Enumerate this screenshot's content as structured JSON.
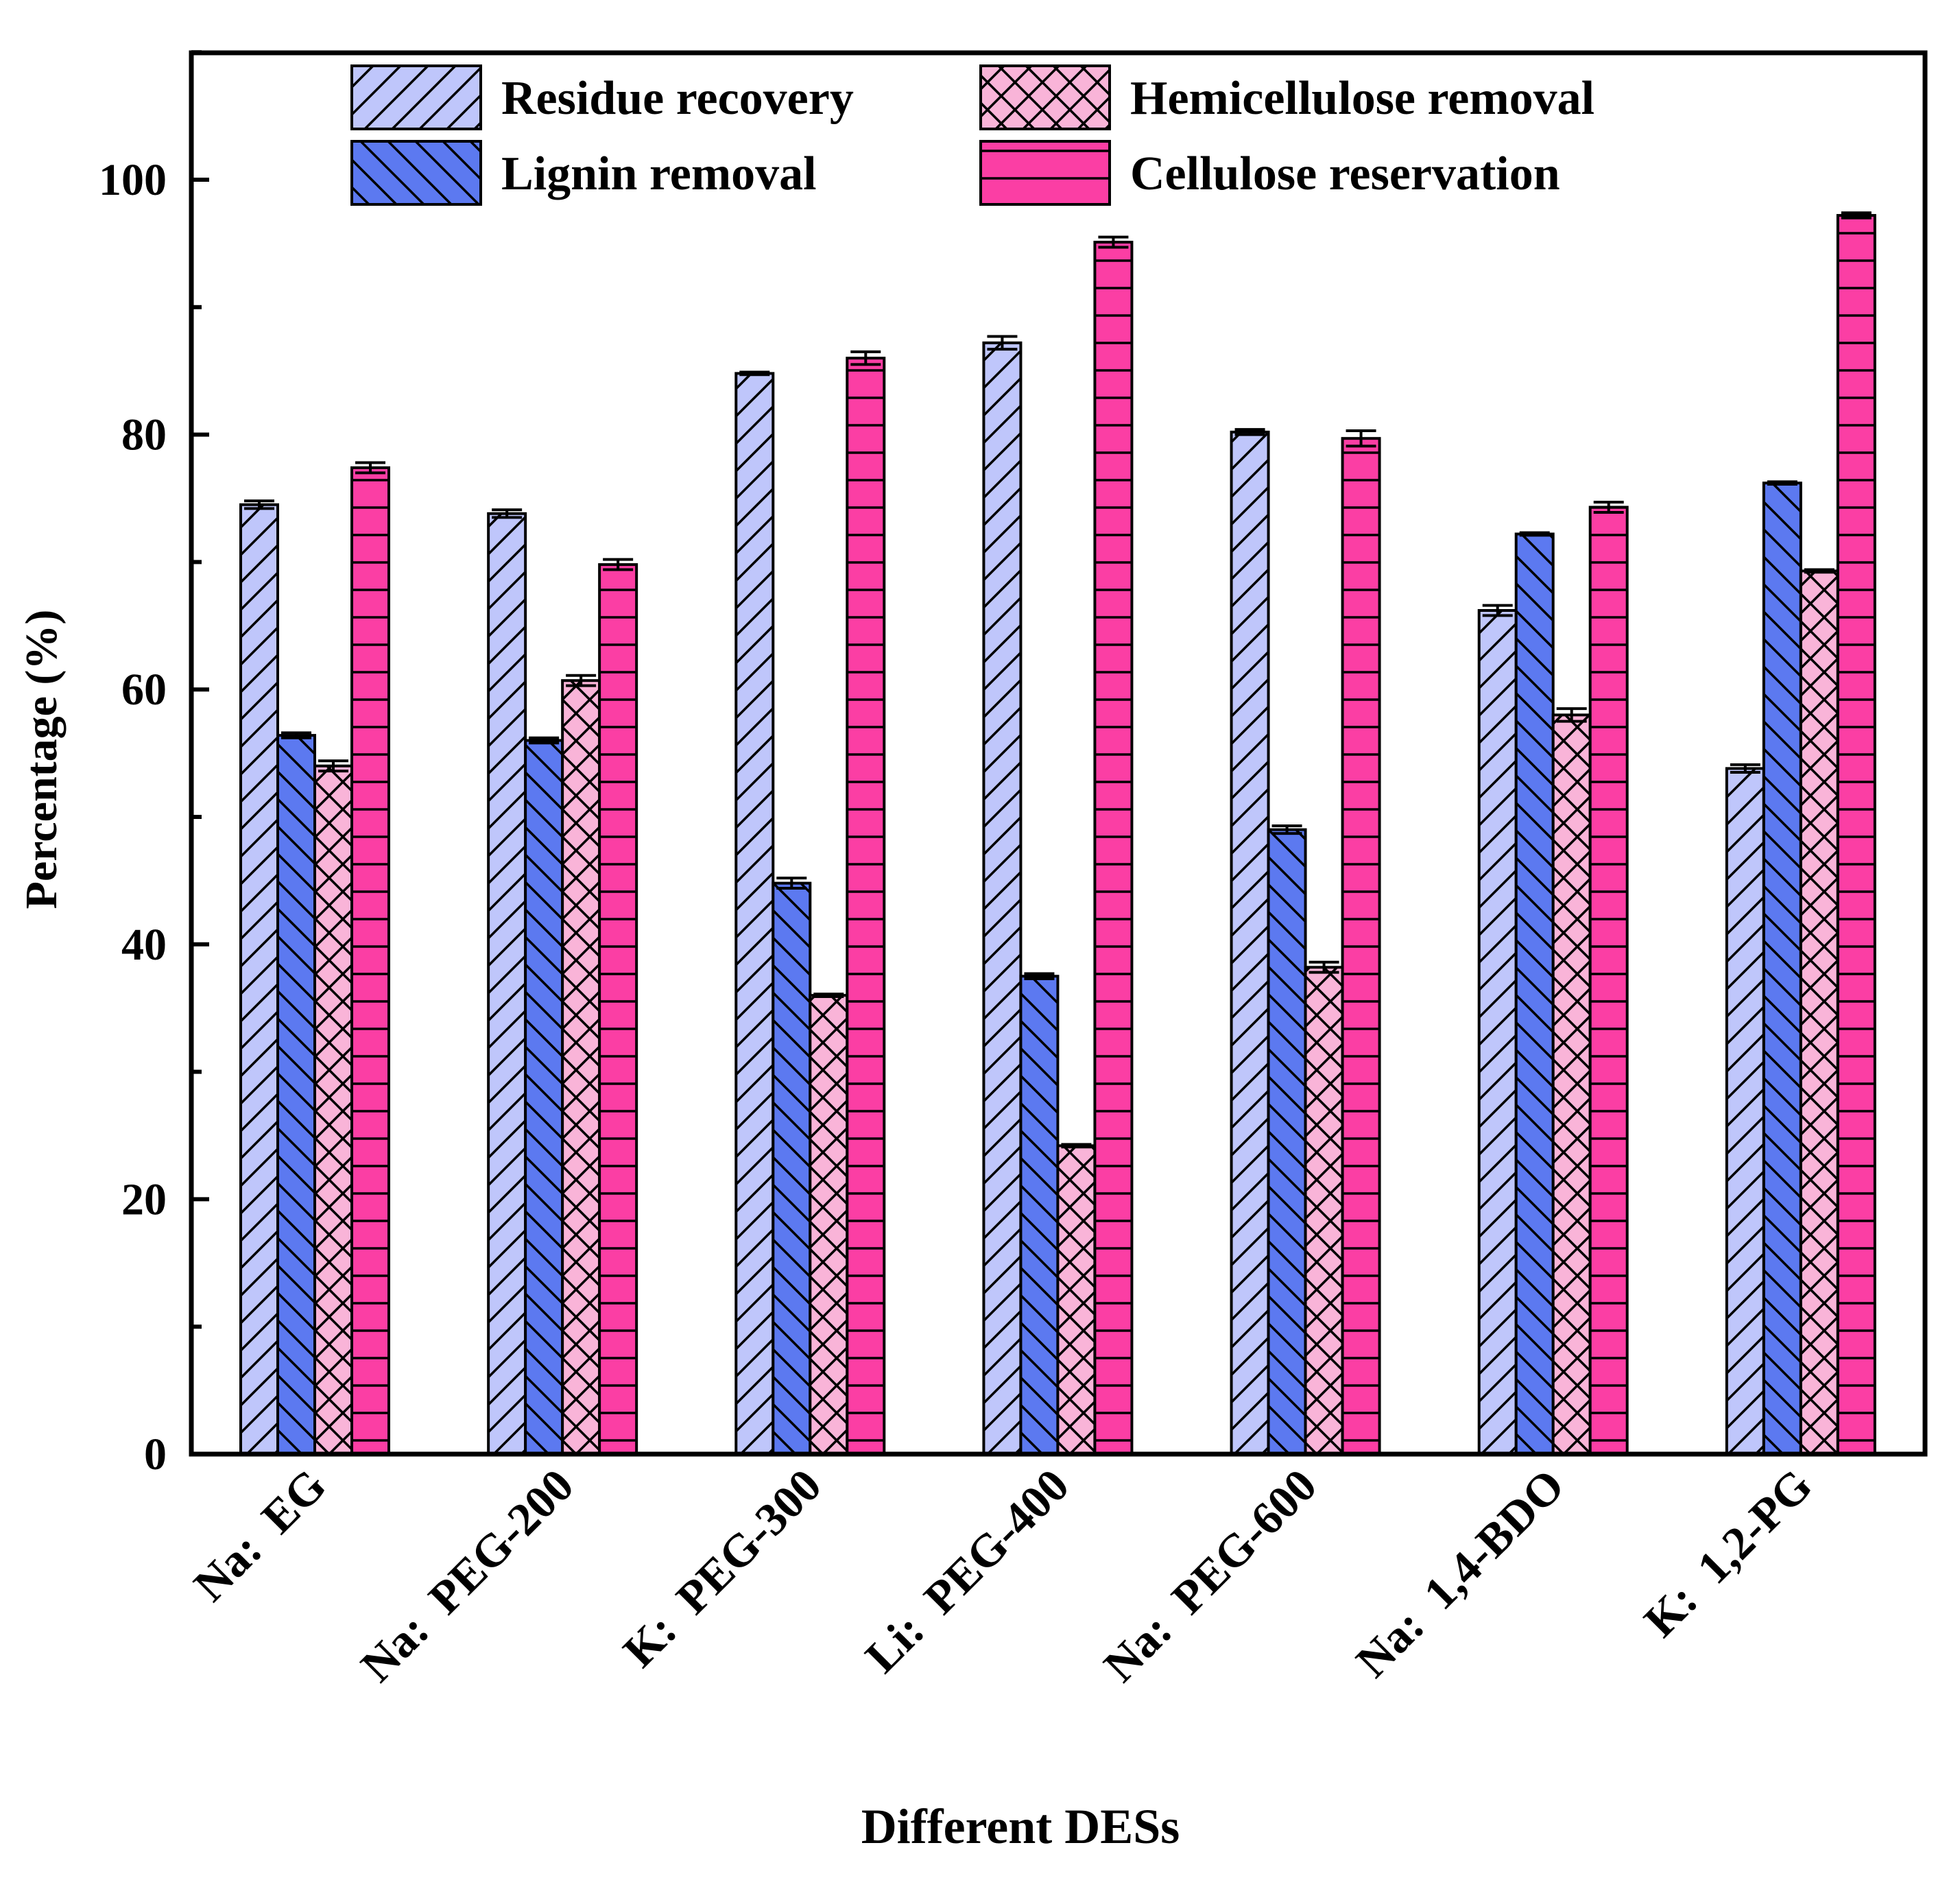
{
  "chart_data": {
    "type": "bar",
    "xlabel": "Different DESs",
    "ylabel": "Percentage (%)",
    "ylim": [
      0,
      110
    ],
    "yticks": [
      0,
      20,
      40,
      60,
      80,
      100
    ],
    "ytick_labels": [
      "0",
      "20",
      "40",
      "60",
      "80",
      "100"
    ],
    "y_minor_step": 10,
    "grid": false,
    "legend_position": "top",
    "categories": [
      "Na:  EG",
      "Na:  PEG-200",
      "K:  PEG-300",
      "Li:  PEG-400",
      "Na:  PEG-600",
      "Na:  1,4-BDO",
      "K:  1,2-PG"
    ],
    "series": [
      {
        "name": "Residue recovery",
        "color": "#bfc6fb",
        "pattern": "diagonal-forward",
        "values": [
          74.5,
          73.8,
          84.8,
          87.2,
          80.2,
          66.2,
          53.8
        ],
        "errors": [
          0.3,
          0.3,
          0.1,
          0.5,
          0.2,
          0.4,
          0.3
        ]
      },
      {
        "name": "Lignin removal",
        "color": "#5c79f0",
        "pattern": "diagonal-backward",
        "values": [
          56.4,
          56.0,
          44.8,
          37.5,
          49.0,
          72.2,
          76.2
        ],
        "errors": [
          0.2,
          0.2,
          0.4,
          0.2,
          0.3,
          0.1,
          0.1
        ]
      },
      {
        "name": "Hemicellulose removal",
        "color": "#f9b4d8",
        "pattern": "crosshatch",
        "values": [
          54.0,
          60.7,
          36.0,
          24.2,
          38.2,
          58.0,
          69.3
        ],
        "errors": [
          0.4,
          0.4,
          0.1,
          0.1,
          0.4,
          0.5,
          0.1
        ]
      },
      {
        "name": "Cellulose reservation",
        "color": "#fb3ea4",
        "pattern": "horizontal",
        "values": [
          77.4,
          69.8,
          86.0,
          95.1,
          79.7,
          74.3,
          97.2
        ],
        "errors": [
          0.4,
          0.4,
          0.5,
          0.4,
          0.6,
          0.4,
          0.2
        ]
      }
    ]
  }
}
